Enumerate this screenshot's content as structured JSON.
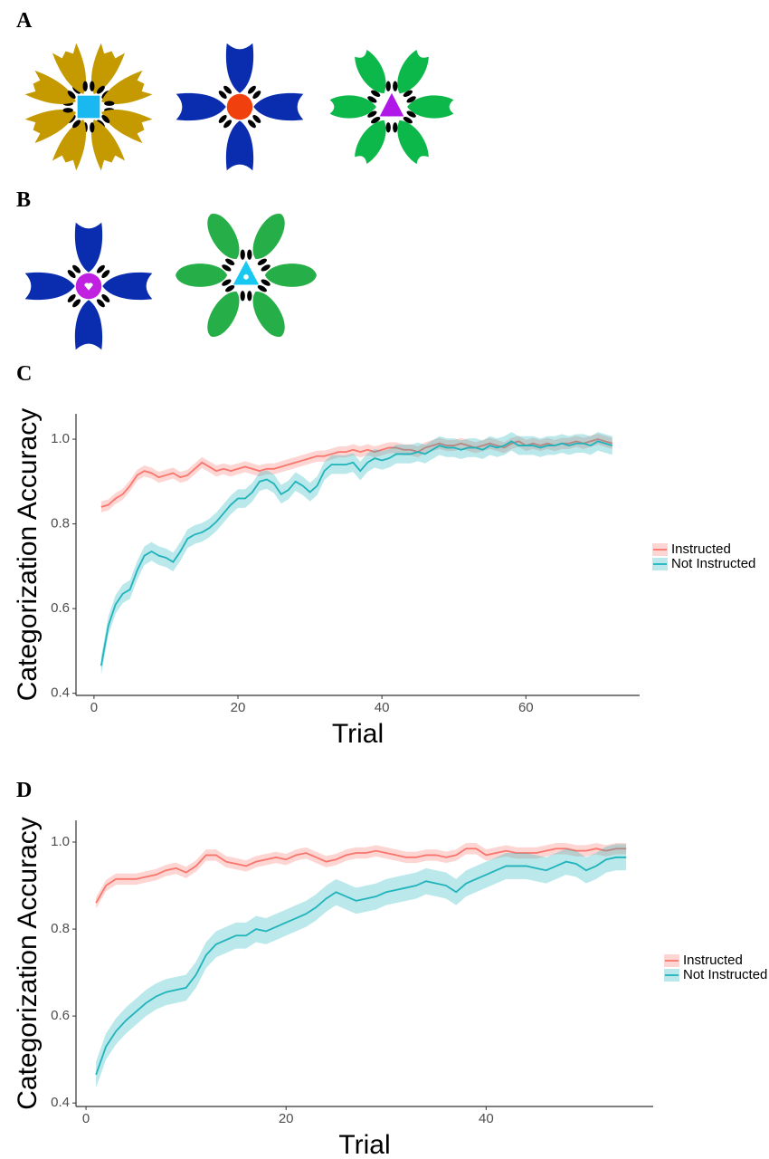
{
  "panel_labels": [
    "A",
    "B",
    "C",
    "D"
  ],
  "chart_data": [
    {
      "type": "line",
      "xlabel": "Trial",
      "ylabel": "Categorization Accuracy",
      "x": [
        1,
        2,
        3,
        4,
        5,
        6,
        7,
        8,
        9,
        10,
        11,
        12,
        13,
        14,
        15,
        16,
        17,
        18,
        19,
        20,
        21,
        22,
        23,
        24,
        25,
        26,
        27,
        28,
        29,
        30,
        31,
        32,
        33,
        34,
        35,
        36,
        37,
        38,
        39,
        40,
        41,
        42,
        43,
        44,
        45,
        46,
        47,
        48,
        49,
        50,
        51,
        52,
        53,
        54,
        55,
        56,
        57,
        58,
        59,
        60,
        61,
        62,
        63,
        64,
        65,
        66,
        67,
        68,
        69,
        70,
        71,
        72
      ],
      "xlim": [
        -2.5,
        75.8
      ],
      "xticks": [
        0,
        20,
        40,
        60
      ],
      "ylim": [
        0.395,
        1.06
      ],
      "yticks": [
        0.4,
        0.6,
        0.8,
        {
          "value": 1,
          "label": "1.0"
        }
      ],
      "legend_position": "right",
      "series": [
        {
          "name": "Instructed",
          "color": "#F8766D",
          "error": 0.013,
          "values": [
            0.84,
            0.845,
            0.86,
            0.87,
            0.89,
            0.915,
            0.925,
            0.92,
            0.91,
            0.915,
            0.92,
            0.91,
            0.915,
            0.93,
            0.945,
            0.935,
            0.925,
            0.93,
            0.925,
            0.93,
            0.935,
            0.93,
            0.925,
            0.93,
            0.93,
            0.935,
            0.94,
            0.945,
            0.95,
            0.955,
            0.96,
            0.96,
            0.965,
            0.97,
            0.97,
            0.975,
            0.97,
            0.975,
            0.97,
            0.975,
            0.98,
            0.98,
            0.975,
            0.975,
            0.97,
            0.98,
            0.985,
            0.99,
            0.985,
            0.985,
            0.99,
            0.985,
            0.98,
            0.985,
            0.99,
            0.985,
            0.98,
            0.99,
            0.995,
            0.985,
            0.99,
            0.985,
            0.99,
            0.985,
            0.99,
            0.99,
            0.995,
            0.99,
            0.995,
            1.0,
            0.995,
            0.99
          ]
        },
        {
          "name": "Not Instructed",
          "color": "#1FB3BB",
          "error": 0.022,
          "values": [
            0.465,
            0.56,
            0.61,
            0.635,
            0.645,
            0.69,
            0.725,
            0.735,
            0.725,
            0.72,
            0.71,
            0.735,
            0.765,
            0.775,
            0.78,
            0.79,
            0.805,
            0.825,
            0.845,
            0.86,
            0.86,
            0.875,
            0.9,
            0.905,
            0.895,
            0.87,
            0.88,
            0.9,
            0.89,
            0.875,
            0.89,
            0.925,
            0.94,
            0.94,
            0.94,
            0.945,
            0.925,
            0.945,
            0.955,
            0.95,
            0.955,
            0.965,
            0.965,
            0.965,
            0.97,
            0.965,
            0.975,
            0.985,
            0.98,
            0.98,
            0.975,
            0.98,
            0.98,
            0.975,
            0.985,
            0.98,
            0.985,
            0.995,
            0.985,
            0.985,
            0.985,
            0.98,
            0.985,
            0.985,
            0.99,
            0.985,
            0.99,
            0.99,
            0.985,
            0.995,
            0.99,
            0.985
          ]
        }
      ]
    },
    {
      "type": "line",
      "xlabel": "Trial",
      "ylabel": "Categorization Accuracy",
      "x": [
        1,
        2,
        3,
        4,
        5,
        6,
        7,
        8,
        9,
        10,
        11,
        12,
        13,
        14,
        15,
        16,
        17,
        18,
        19,
        20,
        21,
        22,
        23,
        24,
        25,
        26,
        27,
        28,
        29,
        30,
        31,
        32,
        33,
        34,
        35,
        36,
        37,
        38,
        39,
        40,
        41,
        42,
        43,
        44,
        45,
        46,
        47,
        48,
        49,
        50,
        51,
        52,
        53,
        54
      ],
      "xlim": [
        -1,
        56.7
      ],
      "xticks": [
        0,
        20,
        40
      ],
      "ylim": [
        0.392,
        1.05
      ],
      "yticks": [
        0.4,
        0.6,
        0.8,
        {
          "value": 1,
          "label": "1.0"
        }
      ],
      "legend_position": "right",
      "series": [
        {
          "name": "Instructed",
          "color": "#F8766D",
          "error": 0.013,
          "values": [
            0.86,
            0.9,
            0.915,
            0.915,
            0.915,
            0.92,
            0.925,
            0.935,
            0.94,
            0.93,
            0.945,
            0.97,
            0.97,
            0.955,
            0.95,
            0.945,
            0.955,
            0.96,
            0.965,
            0.96,
            0.97,
            0.975,
            0.965,
            0.955,
            0.96,
            0.97,
            0.975,
            0.975,
            0.98,
            0.975,
            0.97,
            0.965,
            0.965,
            0.97,
            0.97,
            0.965,
            0.97,
            0.985,
            0.985,
            0.97,
            0.975,
            0.98,
            0.975,
            0.975,
            0.975,
            0.98,
            0.985,
            0.985,
            0.98,
            0.98,
            0.985,
            0.98,
            0.985,
            0.985
          ]
        },
        {
          "name": "Not Instructed",
          "color": "#1FB3BB",
          "error": 0.03,
          "values": [
            0.465,
            0.53,
            0.565,
            0.59,
            0.61,
            0.63,
            0.645,
            0.655,
            0.66,
            0.665,
            0.695,
            0.74,
            0.765,
            0.775,
            0.785,
            0.785,
            0.8,
            0.795,
            0.805,
            0.815,
            0.825,
            0.835,
            0.85,
            0.87,
            0.885,
            0.875,
            0.865,
            0.87,
            0.875,
            0.885,
            0.89,
            0.895,
            0.9,
            0.91,
            0.905,
            0.9,
            0.885,
            0.905,
            0.915,
            0.925,
            0.935,
            0.945,
            0.945,
            0.945,
            0.94,
            0.935,
            0.945,
            0.955,
            0.95,
            0.935,
            0.945,
            0.96,
            0.965,
            0.965
          ]
        }
      ]
    }
  ]
}
